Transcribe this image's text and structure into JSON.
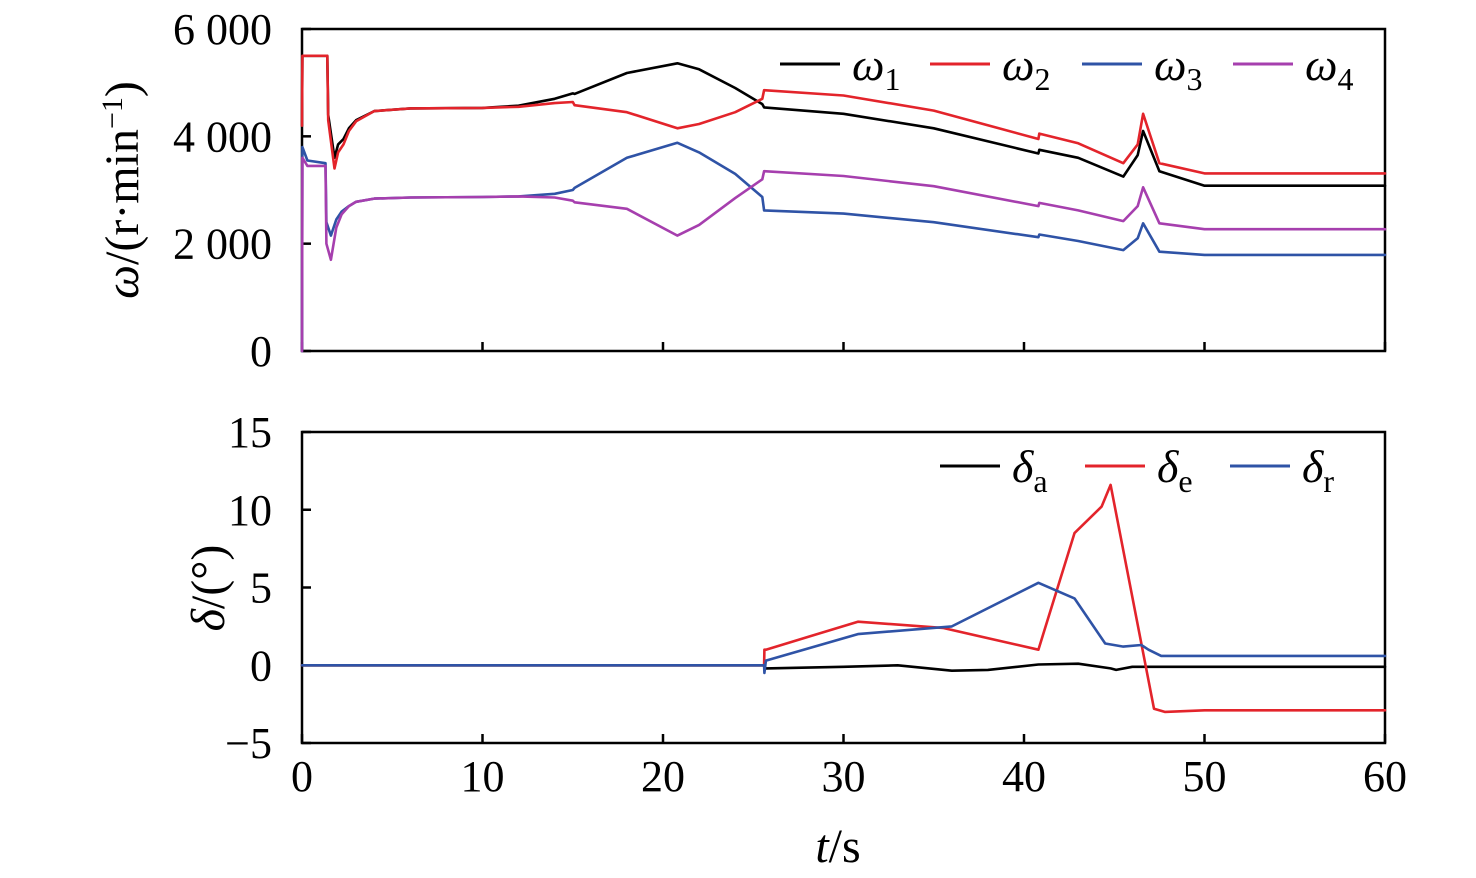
{
  "chart_data": [
    {
      "type": "line",
      "ylabel": "ω/(r·min⁻¹)",
      "ylabel_parts": {
        "symbol": "ω",
        "unit": "/(r·min",
        "exp": "−1",
        "close": ")"
      },
      "xlim": [
        0,
        60
      ],
      "ylim": [
        0,
        6000
      ],
      "xticks": [
        0,
        10,
        20,
        30,
        40,
        50,
        60
      ],
      "yticks": [
        0,
        2000,
        4000,
        6000
      ],
      "ytick_labels": [
        "0",
        "2 000",
        "4 000",
        "6 000"
      ],
      "legend_position": "top-right",
      "series": [
        {
          "name": "ω1",
          "symbol": "ω",
          "sub": "1",
          "color": "#000000",
          "x": [
            0,
            0.02,
            0.1,
            1.4,
            1.45,
            1.8,
            2.0,
            2.3,
            2.6,
            3,
            4,
            6,
            10,
            12,
            14,
            15,
            15.1,
            18,
            20.8,
            22,
            24,
            25.5,
            25.6,
            30,
            35,
            40.8,
            40.85,
            43,
            45.5,
            46.3,
            46.6,
            47.5,
            50,
            60
          ],
          "y": [
            4200,
            5500,
            5500,
            5500,
            4400,
            3600,
            3850,
            3950,
            4150,
            4300,
            4470,
            4520,
            4530,
            4570,
            4700,
            4800,
            4790,
            5180,
            5360,
            5250,
            4900,
            4600,
            4540,
            4420,
            4150,
            3680,
            3750,
            3600,
            3250,
            3650,
            4100,
            3350,
            3080,
            3080
          ]
        },
        {
          "name": "ω2",
          "symbol": "ω",
          "sub": "2",
          "color": "#e3242b",
          "x": [
            0,
            0.02,
            0.1,
            1.4,
            1.45,
            1.8,
            2.0,
            2.3,
            2.6,
            3,
            4,
            6,
            10,
            12,
            14,
            15,
            15.1,
            18,
            20.8,
            22,
            24,
            25.5,
            25.6,
            30,
            35,
            40.8,
            40.85,
            43,
            45.5,
            46.3,
            46.6,
            47.5,
            50,
            60
          ],
          "y": [
            4200,
            5500,
            5500,
            5500,
            4300,
            3400,
            3700,
            3850,
            4100,
            4280,
            4470,
            4520,
            4530,
            4550,
            4620,
            4640,
            4580,
            4450,
            4150,
            4230,
            4450,
            4700,
            4860,
            4760,
            4480,
            3950,
            4050,
            3870,
            3500,
            3850,
            4420,
            3500,
            3310,
            3310
          ]
        },
        {
          "name": "ω3",
          "symbol": "ω",
          "sub": "3",
          "color": "#2f53a6",
          "x": [
            0,
            0.02,
            0.3,
            1.3,
            1.35,
            1.6,
            1.9,
            2.2,
            2.6,
            3,
            4,
            6,
            10,
            12,
            14,
            15,
            15.1,
            18,
            20.8,
            22,
            24,
            25.5,
            25.6,
            30,
            35,
            40.8,
            40.85,
            43,
            45.5,
            46.3,
            46.6,
            47.5,
            50,
            60
          ],
          "y": [
            0,
            3800,
            3550,
            3500,
            2400,
            2150,
            2450,
            2600,
            2700,
            2780,
            2840,
            2860,
            2870,
            2880,
            2930,
            3000,
            3040,
            3600,
            3880,
            3700,
            3300,
            2870,
            2620,
            2560,
            2400,
            2120,
            2170,
            2050,
            1880,
            2100,
            2380,
            1850,
            1790,
            1790
          ]
        },
        {
          "name": "ω4",
          "symbol": "ω",
          "sub": "4",
          "color": "#a63fae",
          "x": [
            0,
            0.02,
            0.3,
            1.3,
            1.35,
            1.6,
            1.9,
            2.2,
            2.6,
            3,
            4,
            6,
            10,
            12,
            14,
            15,
            15.1,
            18,
            20.8,
            22,
            24,
            25.5,
            25.6,
            30,
            35,
            40.8,
            40.85,
            43,
            45.5,
            46.3,
            46.6,
            47.5,
            50,
            60
          ],
          "y": [
            0,
            3600,
            3450,
            3450,
            2000,
            1700,
            2300,
            2550,
            2700,
            2780,
            2840,
            2860,
            2870,
            2880,
            2860,
            2800,
            2770,
            2650,
            2150,
            2350,
            2850,
            3200,
            3350,
            3260,
            3070,
            2700,
            2760,
            2620,
            2420,
            2700,
            3050,
            2380,
            2270,
            2270
          ]
        }
      ]
    },
    {
      "type": "line",
      "xlabel": "t/s",
      "xlabel_parts": {
        "symbol": "t",
        "unit": "/s"
      },
      "ylabel": "δ/(°)",
      "ylabel_parts": {
        "symbol": "δ",
        "unit": "/(°)"
      },
      "xlim": [
        0,
        60
      ],
      "ylim": [
        -5,
        15
      ],
      "xticks": [
        0,
        10,
        20,
        30,
        40,
        50,
        60
      ],
      "xtick_labels": [
        "0",
        "10",
        "20",
        "30",
        "40",
        "50",
        "60"
      ],
      "yticks": [
        -5,
        0,
        5,
        10,
        15
      ],
      "ytick_labels": [
        "−5",
        "0",
        "5",
        "10",
        "15"
      ],
      "legend_position": "top-right",
      "series": [
        {
          "name": "δa",
          "symbol": "δ",
          "sub": "a",
          "color": "#000000",
          "x": [
            0,
            25.6,
            25.7,
            30,
            33,
            36,
            38,
            40.8,
            43,
            44.8,
            45.1,
            46,
            48,
            60
          ],
          "y": [
            0,
            0,
            -0.2,
            -0.1,
            0,
            -0.35,
            -0.3,
            0.05,
            0.1,
            -0.2,
            -0.3,
            -0.1,
            -0.1,
            -0.1
          ]
        },
        {
          "name": "δe",
          "symbol": "δ",
          "sub": "e",
          "color": "#e3242b",
          "x": [
            0,
            25.6,
            25.62,
            25.7,
            30.8,
            35.5,
            40.8,
            42.8,
            44.3,
            44.8,
            47.2,
            47.8,
            50,
            60
          ],
          "y": [
            0,
            0,
            1,
            1,
            2.8,
            2.4,
            1,
            8.5,
            10.2,
            11.6,
            -2.8,
            -3,
            -2.9,
            -2.9
          ]
        },
        {
          "name": "δr",
          "symbol": "δ",
          "sub": "r",
          "color": "#2f53a6",
          "x": [
            0,
            25.6,
            25.62,
            25.7,
            30.8,
            36,
            40.8,
            42.8,
            44.5,
            45.5,
            46.5,
            46.9,
            47.6,
            60
          ],
          "y": [
            0,
            0,
            -0.5,
            0.3,
            2,
            2.5,
            5.3,
            4.3,
            1.4,
            1.2,
            1.3,
            1,
            0.6,
            0.6
          ]
        }
      ]
    }
  ]
}
